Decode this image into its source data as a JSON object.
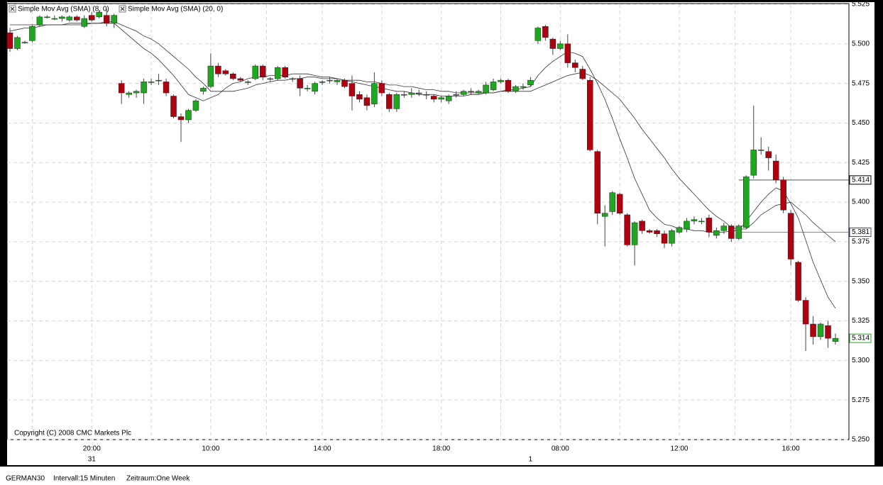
{
  "chart_data": {
    "type": "candlestick",
    "categories": [
      null,
      null,
      null,
      null,
      null,
      null,
      null,
      null,
      null,
      null,
      null,
      "20:00",
      null,
      null,
      null,
      null,
      null,
      null,
      null,
      null,
      null,
      null,
      null,
      null,
      null,
      null,
      null,
      "10:00",
      null,
      null,
      null,
      null,
      null,
      null,
      null,
      null,
      null,
      null,
      null,
      null,
      null,
      null,
      "14:00",
      null,
      null,
      null,
      null,
      null,
      null,
      null,
      null,
      null,
      null,
      null,
      null,
      null,
      null,
      null,
      "18:00",
      null,
      null,
      null,
      null,
      null,
      null,
      null,
      null,
      null,
      null,
      null,
      null,
      null,
      null,
      null,
      "08:00",
      null,
      null,
      null,
      null,
      null,
      null,
      null,
      null,
      null,
      null,
      null,
      null,
      null,
      null,
      null,
      "12:00",
      null,
      null,
      null,
      null,
      null,
      null,
      null,
      null,
      null,
      null,
      null,
      null,
      null,
      null,
      "16:00",
      null,
      null,
      null,
      null,
      null,
      null
    ],
    "days": [
      null,
      null,
      null,
      null,
      null,
      null,
      null,
      null,
      null,
      null,
      null,
      "31",
      null,
      null,
      null,
      null,
      null,
      null,
      null,
      null,
      null,
      null,
      null,
      null,
      null,
      null,
      null,
      null,
      null,
      null,
      null,
      null,
      null,
      null,
      null,
      null,
      null,
      null,
      null,
      null,
      null,
      null,
      null,
      null,
      null,
      null,
      null,
      null,
      null,
      null,
      null,
      null,
      null,
      null,
      null,
      null,
      null,
      null,
      null,
      null,
      null,
      null,
      null,
      null,
      null,
      null,
      null,
      null,
      null,
      null,
      "1",
      null,
      null,
      null,
      null,
      null,
      null,
      null,
      null,
      null,
      null,
      null,
      null,
      null,
      null,
      null,
      null,
      null,
      null,
      null,
      null,
      null,
      null,
      null,
      null,
      null,
      null,
      null,
      null,
      null,
      null,
      null,
      null,
      null,
      null,
      null,
      null,
      null,
      null,
      null,
      null,
      null
    ],
    "open": [
      5.507,
      5.497,
      5.501,
      5.502,
      5.512,
      5.517,
      5.516,
      5.516,
      5.515,
      5.517,
      5.511,
      5.518,
      5.517,
      5.518,
      5.513,
      5.475,
      5.468,
      5.469,
      5.469,
      5.476,
      5.477,
      5.476,
      5.467,
      5.454,
      5.452,
      5.458,
      5.47,
      5.473,
      5.486,
      5.483,
      5.481,
      5.478,
      5.476,
      5.478,
      5.486,
      5.478,
      5.478,
      5.485,
      5.478,
      5.478,
      5.472,
      5.47,
      5.476,
      5.477,
      5.476,
      5.477,
      5.475,
      5.468,
      5.466,
      5.462,
      5.475,
      5.468,
      5.459,
      5.468,
      5.468,
      5.469,
      5.468,
      5.467,
      5.465,
      5.464,
      5.468,
      5.468,
      5.47,
      5.469,
      5.469,
      5.471,
      5.476,
      5.477,
      5.47,
      5.473,
      5.474,
      5.502,
      5.511,
      5.503,
      5.497,
      5.5,
      5.488,
      5.484,
      5.477,
      5.432,
      5.391,
      5.394,
      5.405,
      5.392,
      5.373,
      5.388,
      5.382,
      5.382,
      5.38,
      5.374,
      5.381,
      5.383,
      5.388,
      5.388,
      5.39,
      5.379,
      5.382,
      5.385,
      5.377,
      5.384,
      5.417,
      5.433,
      5.432,
      5.426,
      5.414,
      5.393,
      5.362,
      5.338,
      5.323,
      5.315,
      5.322,
      5.312
    ],
    "high": [
      5.51,
      5.505,
      5.502,
      5.512,
      5.518,
      5.518,
      5.518,
      5.518,
      5.518,
      5.518,
      5.518,
      5.52,
      5.521,
      5.522,
      5.519,
      5.477,
      5.47,
      5.471,
      5.478,
      5.478,
      5.481,
      5.478,
      5.468,
      5.456,
      5.459,
      5.465,
      5.473,
      5.494,
      5.488,
      5.484,
      5.482,
      5.479,
      5.477,
      5.487,
      5.487,
      5.479,
      5.486,
      5.486,
      5.479,
      5.48,
      5.474,
      5.476,
      5.477,
      5.479,
      5.478,
      5.478,
      5.48,
      5.47,
      5.468,
      5.482,
      5.477,
      5.469,
      5.469,
      5.47,
      5.472,
      5.471,
      5.47,
      5.468,
      5.467,
      5.468,
      5.47,
      5.471,
      5.472,
      5.471,
      5.476,
      5.478,
      5.478,
      5.478,
      5.474,
      5.475,
      5.479,
      5.511,
      5.512,
      5.504,
      5.502,
      5.506,
      5.49,
      5.486,
      5.479,
      5.433,
      5.398,
      5.407,
      5.406,
      5.393,
      5.388,
      5.389,
      5.383,
      5.383,
      5.382,
      5.383,
      5.385,
      5.39,
      5.391,
      5.39,
      5.392,
      5.384,
      5.387,
      5.386,
      5.386,
      5.417,
      5.461,
      5.441,
      5.435,
      5.43,
      5.416,
      5.395,
      5.363,
      5.34,
      5.328,
      5.324,
      5.325,
      5.317
    ],
    "low": [
      5.495,
      5.496,
      5.5,
      5.501,
      5.511,
      5.516,
      5.515,
      5.514,
      5.514,
      5.514,
      5.51,
      5.514,
      5.516,
      5.511,
      5.51,
      5.462,
      5.466,
      5.466,
      5.462,
      5.474,
      5.474,
      5.467,
      5.453,
      5.438,
      5.45,
      5.457,
      5.468,
      5.472,
      5.479,
      5.48,
      5.477,
      5.476,
      5.474,
      5.477,
      5.477,
      5.476,
      5.477,
      5.478,
      5.476,
      5.467,
      5.47,
      5.468,
      5.474,
      5.475,
      5.474,
      5.472,
      5.458,
      5.463,
      5.458,
      5.46,
      5.467,
      5.457,
      5.457,
      5.466,
      5.466,
      5.467,
      5.465,
      5.463,
      5.463,
      5.462,
      5.466,
      5.467,
      5.468,
      5.468,
      5.468,
      5.47,
      5.475,
      5.469,
      5.469,
      5.471,
      5.473,
      5.5,
      5.502,
      5.493,
      5.496,
      5.485,
      5.482,
      5.477,
      5.432,
      5.386,
      5.372,
      5.392,
      5.392,
      5.372,
      5.36,
      5.38,
      5.38,
      5.378,
      5.371,
      5.372,
      5.38,
      5.381,
      5.386,
      5.386,
      5.378,
      5.377,
      5.38,
      5.375,
      5.376,
      5.383,
      5.415,
      5.43,
      5.42,
      5.412,
      5.393,
      5.36,
      5.337,
      5.306,
      5.31,
      5.313,
      5.308,
      5.31
    ],
    "close": [
      5.497,
      5.504,
      5.501,
      5.511,
      5.517,
      5.517,
      5.516,
      5.517,
      5.517,
      5.515,
      5.516,
      5.515,
      5.52,
      5.513,
      5.518,
      5.469,
      5.469,
      5.47,
      5.476,
      5.476,
      5.477,
      5.469,
      5.454,
      5.452,
      5.458,
      5.464,
      5.472,
      5.486,
      5.481,
      5.481,
      5.478,
      5.477,
      5.476,
      5.486,
      5.479,
      5.478,
      5.485,
      5.479,
      5.478,
      5.472,
      5.472,
      5.475,
      5.476,
      5.477,
      5.477,
      5.473,
      5.467,
      5.465,
      5.461,
      5.475,
      5.469,
      5.459,
      5.468,
      5.468,
      5.469,
      5.469,
      5.468,
      5.465,
      5.466,
      5.467,
      5.468,
      5.47,
      5.47,
      5.47,
      5.474,
      5.476,
      5.477,
      5.47,
      5.473,
      5.473,
      5.477,
      5.51,
      5.504,
      5.497,
      5.5,
      5.488,
      5.485,
      5.478,
      5.433,
      5.393,
      5.393,
      5.406,
      5.393,
      5.373,
      5.387,
      5.382,
      5.381,
      5.38,
      5.374,
      5.382,
      5.384,
      5.388,
      5.389,
      5.388,
      5.381,
      5.382,
      5.385,
      5.377,
      5.385,
      5.416,
      5.433,
      5.433,
      5.428,
      5.414,
      5.395,
      5.364,
      5.338,
      5.323,
      5.315,
      5.323,
      5.314,
      5.314
    ],
    "up_color": "#1fa81f",
    "down_color": "#b0000f",
    "series": [
      {
        "name": "Simple Mov Avg (SMA) (8, 0)",
        "color": "#333333",
        "values": [
          5.508,
          5.509,
          5.51,
          5.51,
          5.511,
          5.512,
          5.512,
          5.512,
          5.513,
          5.513,
          5.513,
          5.513,
          5.513,
          5.513,
          5.513,
          5.509,
          5.505,
          5.501,
          5.497,
          5.494,
          5.49,
          5.485,
          5.48,
          5.474,
          5.468,
          5.466,
          5.464,
          5.466,
          5.468,
          5.472,
          5.475,
          5.476,
          5.478,
          5.479,
          5.479,
          5.48,
          5.48,
          5.48,
          5.481,
          5.481,
          5.481,
          5.48,
          5.479,
          5.479,
          5.478,
          5.477,
          5.476,
          5.475,
          5.474,
          5.473,
          5.472,
          5.471,
          5.47,
          5.47,
          5.469,
          5.468,
          5.468,
          5.468,
          5.467,
          5.467,
          5.467,
          5.467,
          5.468,
          5.468,
          5.469,
          5.469,
          5.47,
          5.471,
          5.471,
          5.472,
          5.473,
          5.48,
          5.485,
          5.489,
          5.492,
          5.495,
          5.494,
          5.492,
          5.484,
          5.475,
          5.465,
          5.453,
          5.44,
          5.428,
          5.415,
          5.405,
          5.395,
          5.39,
          5.386,
          5.385,
          5.383,
          5.383,
          5.382,
          5.382,
          5.381,
          5.381,
          5.381,
          5.382,
          5.382,
          5.388,
          5.394,
          5.4,
          5.405,
          5.409,
          5.407,
          5.399,
          5.39,
          5.376,
          5.362,
          5.351,
          5.34,
          5.333
        ]
      },
      {
        "name": "Simple Mov Avg (SMA) (20, 0)",
        "color": "#333333",
        "values": [
          5.512,
          5.512,
          5.512,
          5.512,
          5.512,
          5.512,
          5.512,
          5.512,
          5.512,
          5.512,
          5.512,
          5.513,
          5.513,
          5.514,
          5.514,
          5.512,
          5.51,
          5.508,
          5.505,
          5.503,
          5.5,
          5.496,
          5.492,
          5.488,
          5.484,
          5.479,
          5.475,
          5.47,
          5.47,
          5.47,
          5.47,
          5.471,
          5.472,
          5.474,
          5.475,
          5.476,
          5.477,
          5.477,
          5.478,
          5.478,
          5.479,
          5.479,
          5.478,
          5.478,
          5.478,
          5.477,
          5.477,
          5.477,
          5.476,
          5.476,
          5.475,
          5.474,
          5.474,
          5.473,
          5.473,
          5.472,
          5.471,
          5.471,
          5.47,
          5.47,
          5.469,
          5.469,
          5.469,
          5.469,
          5.469,
          5.469,
          5.47,
          5.47,
          5.47,
          5.47,
          5.47,
          5.472,
          5.474,
          5.476,
          5.478,
          5.48,
          5.481,
          5.482,
          5.48,
          5.477,
          5.473,
          5.469,
          5.465,
          5.459,
          5.453,
          5.446,
          5.44,
          5.434,
          5.428,
          5.421,
          5.415,
          5.41,
          5.405,
          5.4,
          5.395,
          5.391,
          5.388,
          5.384,
          5.383,
          5.383,
          5.387,
          5.392,
          5.395,
          5.398,
          5.399,
          5.4,
          5.396,
          5.392,
          5.387,
          5.383,
          5.379,
          5.375
        ]
      }
    ],
    "ylim": [
      5.25,
      5.525
    ],
    "yticks": [
      5.525,
      {
        "value": 5.5,
        "label": "5.500"
      },
      5.475,
      {
        "value": 5.45,
        "label": "5.450"
      },
      5.425,
      {
        "value": 5.4,
        "label": "5.400"
      },
      5.375,
      {
        "value": 5.35,
        "label": "5.350"
      },
      5.325,
      {
        "value": 5.3,
        "label": "5.300"
      },
      5.275,
      {
        "value": 5.25,
        "label": "5.250"
      }
    ],
    "grid": true,
    "reference_lines": [
      {
        "value": 5.414,
        "color": "#000000"
      },
      {
        "value": 5.381,
        "color": "#5a3c96"
      }
    ],
    "last_price": {
      "value": 5.314,
      "color": "#1fa81f"
    },
    "annotation": "Copyright (C) 2008 CMC Markets Plc"
  },
  "footer": {
    "instrument": "GERMAN30",
    "interval": "Intervall:15 Minuten",
    "period": "Zeitraum:One Week"
  }
}
